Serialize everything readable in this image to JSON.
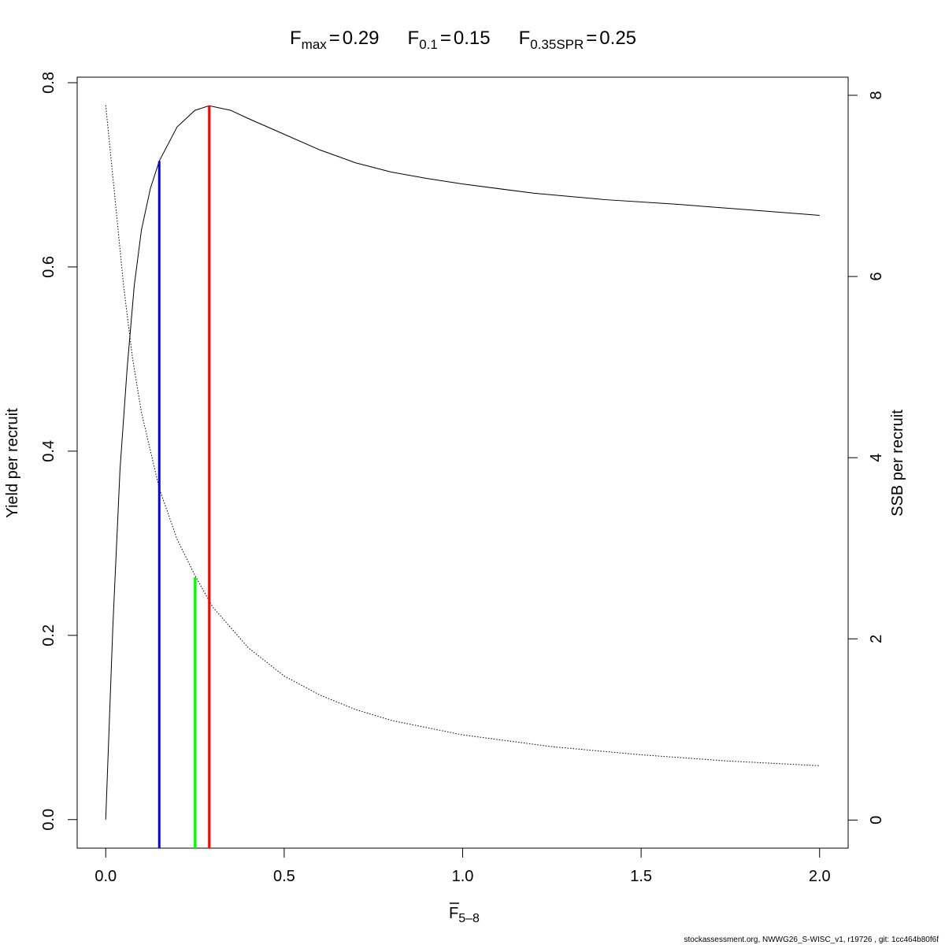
{
  "chart_data": {
    "type": "line",
    "title_parts": [
      {
        "symbol": "F",
        "subscript": "max",
        "relation": "=",
        "value": 0.29
      },
      {
        "symbol": "F",
        "subscript": "0.1",
        "relation": "=",
        "value": 0.15
      },
      {
        "symbol": "F",
        "subscript": "0.35SPR",
        "relation": "=",
        "value": 0.25
      }
    ],
    "xlabel": {
      "symbol": "F",
      "subscript": "5–8"
    },
    "ylabel": "Yield per recruit",
    "y2label": "SSB per recruit",
    "footer": "stockassessment.org, NWWG26_S-WISC_v1, r19726 , git: 1cc464b80f6f",
    "xlim": [
      -0.08,
      2.08
    ],
    "ylim": [
      -0.031,
      0.806
    ],
    "y2lim": [
      -0.31,
      8.2
    ],
    "xticks": [
      {
        "value": 0,
        "label": "0.0"
      },
      0.5,
      {
        "value": 1,
        "label": "1.0"
      },
      1.5,
      {
        "value": 2,
        "label": "2.0"
      }
    ],
    "yticks": [
      {
        "value": 0,
        "label": "0.0"
      },
      0.2,
      0.4,
      0.6,
      {
        "value": 0.8,
        "label": "0.8"
      }
    ],
    "y2ticks": [
      0,
      2,
      4,
      6,
      8
    ],
    "series": [
      {
        "color": "#000000",
        "style": "solid",
        "axis": "y",
        "x": [
          0,
          0.02,
          0.04,
          0.06,
          0.08,
          0.1,
          0.125,
          0.15,
          0.2,
          0.25,
          0.29,
          0.35,
          0.4,
          0.5,
          0.6,
          0.7,
          0.8,
          0.9,
          1.0,
          1.2,
          1.4,
          1.6,
          1.8,
          2.0
        ],
        "values": [
          0,
          0.21,
          0.38,
          0.49,
          0.58,
          0.64,
          0.685,
          0.715,
          0.752,
          0.77,
          0.775,
          0.77,
          0.761,
          0.744,
          0.727,
          0.713,
          0.703,
          0.696,
          0.69,
          0.68,
          0.673,
          0.668,
          0.662,
          0.656
        ]
      },
      {
        "color": "#000000",
        "style": "dotted",
        "axis": "y2",
        "x": [
          0,
          0.025,
          0.05,
          0.075,
          0.1,
          0.15,
          0.2,
          0.25,
          0.3,
          0.4,
          0.5,
          0.6,
          0.7,
          0.8,
          1.0,
          1.25,
          1.5,
          1.75,
          2.0
        ],
        "values": [
          7.89,
          6.9,
          5.9,
          5.1,
          4.5,
          3.66,
          3.1,
          2.7,
          2.35,
          1.9,
          1.59,
          1.38,
          1.22,
          1.1,
          0.94,
          0.81,
          0.72,
          0.65,
          0.6
        ]
      }
    ],
    "vlines": [
      {
        "x": 0.15,
        "top": 0.715,
        "color": "#0000ff"
      },
      {
        "x": 0.25,
        "top": 0.263,
        "color": "#00ff00"
      },
      {
        "x": 0.29,
        "top": 0.775,
        "color": "#ff0000"
      }
    ]
  }
}
